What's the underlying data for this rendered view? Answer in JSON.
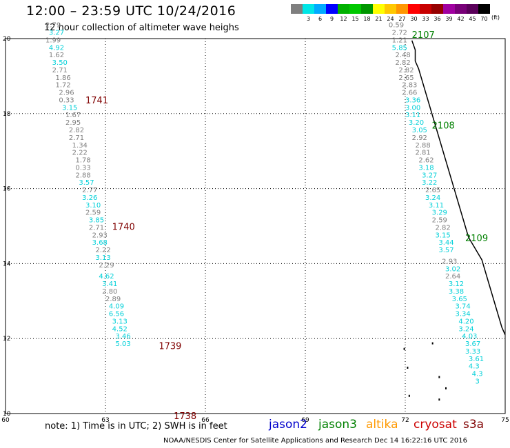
{
  "title": "12:00 – 23:59 UTC 10/24/2016",
  "subtitle": "12 hour collection of altimeter wave heighs",
  "scale": {
    "colors": [
      "#7f7f7f",
      "#00e6e6",
      "#00aaff",
      "#0000ff",
      "#00b000",
      "#00c800",
      "#009600",
      "#ffff00",
      "#ffc800",
      "#ff9600",
      "#ff0000",
      "#c80000",
      "#960000",
      "#a000a0",
      "#780078",
      "#5a005a",
      "#000000"
    ],
    "labels": [
      "3",
      "6",
      "9",
      "12",
      "15",
      "18",
      "21",
      "24",
      "27",
      "30",
      "33",
      "36",
      "39",
      "42",
      "45",
      "70"
    ],
    "unit": "(ft)"
  },
  "axes": {
    "lon_labels": [
      "60",
      "63",
      "66",
      "69",
      "72",
      "75"
    ],
    "lat_labels": [
      "20",
      "18",
      "16",
      "14",
      "12",
      "10"
    ]
  },
  "tracks": [
    {
      "label": "1741",
      "lat": 18.27,
      "lon": 62.4,
      "color": "#800000"
    },
    {
      "label": "1740",
      "lat": 14.9,
      "lon": 63.2,
      "color": "#800000"
    },
    {
      "label": "1739",
      "lat": 11.72,
      "lon": 64.6,
      "color": "#800000"
    },
    {
      "label": "1738",
      "lat": 9.85,
      "lon": 65.05,
      "color": "#800000"
    },
    {
      "label": "2107",
      "lat": 20.02,
      "lon": 72.2,
      "color": "#008000"
    },
    {
      "label": "2108",
      "lat": 17.6,
      "lon": 72.8,
      "color": "#008000"
    },
    {
      "label": "2109",
      "lat": 14.6,
      "lon": 73.8,
      "color": "#008000"
    }
  ],
  "chart_data": {
    "type": "scatter",
    "xlim": [
      60,
      75
    ],
    "ylim": [
      10,
      20
    ],
    "points": [
      {
        "lat": 20.3,
        "lon": 61.2,
        "v": "2.79"
      },
      {
        "lat": 20.1,
        "lon": 61.3,
        "v": "3.27"
      },
      {
        "lat": 19.9,
        "lon": 61.2,
        "v": "1.99"
      },
      {
        "lat": 19.7,
        "lon": 61.3,
        "v": "4.92"
      },
      {
        "lat": 19.5,
        "lon": 61.3,
        "v": "1.62"
      },
      {
        "lat": 19.3,
        "lon": 61.4,
        "v": "3.50"
      },
      {
        "lat": 19.1,
        "lon": 61.4,
        "v": "2.71"
      },
      {
        "lat": 18.9,
        "lon": 61.5,
        "v": "1.86"
      },
      {
        "lat": 18.7,
        "lon": 61.5,
        "v": "1.72"
      },
      {
        "lat": 18.5,
        "lon": 61.6,
        "v": "2.96"
      },
      {
        "lat": 18.3,
        "lon": 61.6,
        "v": "0.33"
      },
      {
        "lat": 18.1,
        "lon": 61.7,
        "v": "3.15"
      },
      {
        "lat": 17.9,
        "lon": 61.8,
        "v": "1.67"
      },
      {
        "lat": 17.7,
        "lon": 61.8,
        "v": "2.95"
      },
      {
        "lat": 17.5,
        "lon": 61.9,
        "v": "2.82"
      },
      {
        "lat": 17.3,
        "lon": 61.9,
        "v": "2.71"
      },
      {
        "lat": 17.1,
        "lon": 62.0,
        "v": "1.34"
      },
      {
        "lat": 16.9,
        "lon": 62.0,
        "v": "2.22"
      },
      {
        "lat": 16.7,
        "lon": 62.1,
        "v": "1.78"
      },
      {
        "lat": 16.5,
        "lon": 62.1,
        "v": "0.33"
      },
      {
        "lat": 16.3,
        "lon": 62.1,
        "v": "2.88"
      },
      {
        "lat": 16.1,
        "lon": 62.2,
        "v": "3.57"
      },
      {
        "lat": 15.9,
        "lon": 62.3,
        "v": "2.77"
      },
      {
        "lat": 15.7,
        "lon": 62.3,
        "v": "3.26"
      },
      {
        "lat": 15.5,
        "lon": 62.4,
        "v": "3.10"
      },
      {
        "lat": 15.3,
        "lon": 62.4,
        "v": "2.59"
      },
      {
        "lat": 15.1,
        "lon": 62.5,
        "v": "3.85"
      },
      {
        "lat": 14.9,
        "lon": 62.5,
        "v": "2.71"
      },
      {
        "lat": 14.7,
        "lon": 62.6,
        "v": "2.93"
      },
      {
        "lat": 14.5,
        "lon": 62.6,
        "v": "3.68"
      },
      {
        "lat": 14.3,
        "lon": 62.7,
        "v": "2.22"
      },
      {
        "lat": 14.1,
        "lon": 62.7,
        "v": "3.13"
      },
      {
        "lat": 13.9,
        "lon": 62.8,
        "v": "2.29"
      },
      {
        "lat": 13.6,
        "lon": 62.8,
        "v": "4.62"
      },
      {
        "lat": 13.4,
        "lon": 62.9,
        "v": "3.41"
      },
      {
        "lat": 13.2,
        "lon": 62.9,
        "v": "2.80"
      },
      {
        "lat": 13.0,
        "lon": 63.0,
        "v": "2.89"
      },
      {
        "lat": 12.8,
        "lon": 63.1,
        "v": "4.09"
      },
      {
        "lat": 12.6,
        "lon": 63.1,
        "v": "6.56"
      },
      {
        "lat": 12.4,
        "lon": 63.2,
        "v": "3.13"
      },
      {
        "lat": 12.2,
        "lon": 63.2,
        "v": "4.52"
      },
      {
        "lat": 12.0,
        "lon": 63.3,
        "v": "3.46"
      },
      {
        "lat": 11.8,
        "lon": 63.3,
        "v": "5.03"
      },
      {
        "lat": 20.3,
        "lon": 71.5,
        "v": "0.59"
      },
      {
        "lat": 20.1,
        "lon": 71.6,
        "v": "2.72"
      },
      {
        "lat": 19.9,
        "lon": 71.6,
        "v": "1.21"
      },
      {
        "lat": 19.7,
        "lon": 71.6,
        "v": "5.85"
      },
      {
        "lat": 19.5,
        "lon": 71.7,
        "v": "2.48"
      },
      {
        "lat": 19.3,
        "lon": 71.7,
        "v": "2.82"
      },
      {
        "lat": 19.1,
        "lon": 71.8,
        "v": "2.82"
      },
      {
        "lat": 18.9,
        "lon": 71.8,
        "v": "2.65"
      },
      {
        "lat": 18.7,
        "lon": 71.9,
        "v": "2.83"
      },
      {
        "lat": 18.5,
        "lon": 71.9,
        "v": "2.66"
      },
      {
        "lat": 18.3,
        "lon": 72.0,
        "v": "3.36"
      },
      {
        "lat": 18.1,
        "lon": 72.0,
        "v": "3.00"
      },
      {
        "lat": 17.9,
        "lon": 72.0,
        "v": "3.11"
      },
      {
        "lat": 17.7,
        "lon": 72.1,
        "v": "3.20"
      },
      {
        "lat": 17.5,
        "lon": 72.2,
        "v": "3.05"
      },
      {
        "lat": 17.3,
        "lon": 72.2,
        "v": "2.92"
      },
      {
        "lat": 17.1,
        "lon": 72.3,
        "v": "2.88"
      },
      {
        "lat": 16.9,
        "lon": 72.3,
        "v": "2.81"
      },
      {
        "lat": 16.7,
        "lon": 72.4,
        "v": "2.62"
      },
      {
        "lat": 16.5,
        "lon": 72.4,
        "v": "3.18"
      },
      {
        "lat": 16.3,
        "lon": 72.5,
        "v": "3.27"
      },
      {
        "lat": 16.1,
        "lon": 72.5,
        "v": "3.22"
      },
      {
        "lat": 15.9,
        "lon": 72.6,
        "v": "2.65"
      },
      {
        "lat": 15.7,
        "lon": 72.6,
        "v": "3.24"
      },
      {
        "lat": 15.5,
        "lon": 72.7,
        "v": "3.11"
      },
      {
        "lat": 15.3,
        "lon": 72.8,
        "v": "3.29"
      },
      {
        "lat": 15.1,
        "lon": 72.8,
        "v": "2.59"
      },
      {
        "lat": 14.9,
        "lon": 72.9,
        "v": "2.82"
      },
      {
        "lat": 14.7,
        "lon": 72.9,
        "v": "3.15"
      },
      {
        "lat": 14.5,
        "lon": 73.0,
        "v": "3.44"
      },
      {
        "lat": 14.3,
        "lon": 73.0,
        "v": "3.57"
      },
      {
        "lat": 14.0,
        "lon": 73.1,
        "v": "2.93"
      },
      {
        "lat": 13.8,
        "lon": 73.2,
        "v": "3.02"
      },
      {
        "lat": 13.6,
        "lon": 73.2,
        "v": "2.64"
      },
      {
        "lat": 13.4,
        "lon": 73.3,
        "v": "3.12"
      },
      {
        "lat": 13.2,
        "lon": 73.3,
        "v": "3.38"
      },
      {
        "lat": 13.0,
        "lon": 73.4,
        "v": "3.65"
      },
      {
        "lat": 12.8,
        "lon": 73.5,
        "v": "3.74"
      },
      {
        "lat": 12.6,
        "lon": 73.5,
        "v": "3.34"
      },
      {
        "lat": 12.4,
        "lon": 73.6,
        "v": "4.20"
      },
      {
        "lat": 12.2,
        "lon": 73.6,
        "v": "3.24"
      },
      {
        "lat": 12.0,
        "lon": 73.7,
        "v": "4.03"
      },
      {
        "lat": 11.8,
        "lon": 73.8,
        "v": "3.67"
      },
      {
        "lat": 11.6,
        "lon": 73.8,
        "v": "3.33"
      },
      {
        "lat": 11.4,
        "lon": 73.9,
        "v": "3.61"
      },
      {
        "lat": 11.2,
        "lon": 73.9,
        "v": "4.3"
      },
      {
        "lat": 11.0,
        "lon": 74.0,
        "v": "4.3"
      },
      {
        "lat": 10.8,
        "lon": 74.1,
        "v": "3"
      }
    ]
  },
  "note": "note: 1) Time is in UTC; 2) SWH is in feet",
  "satellites": [
    {
      "name": "jason2",
      "color": "#0000cc"
    },
    {
      "name": "jason3",
      "color": "#008000"
    },
    {
      "name": "altika",
      "color": "#ff9900"
    },
    {
      "name": "cryosat",
      "color": "#cc0000"
    },
    {
      "name": "s3a",
      "color": "#800000"
    }
  ],
  "footer": "NOAA/NESDIS Center for Satellite Applications and Research    Dec 14 16:22:16 UTC 2016"
}
